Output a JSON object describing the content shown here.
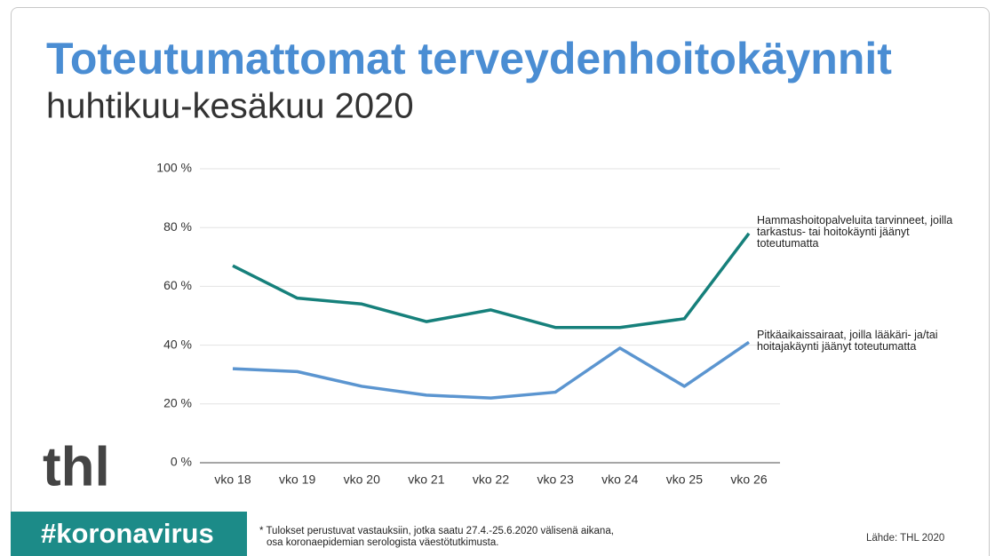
{
  "chart_data": {
    "type": "line",
    "title": "Toteutumattomat terveydenhoitokäynnit",
    "subtitle": "huhtikuu-kesäkuu 2020",
    "categories": [
      "vko 18",
      "vko 19",
      "vko 20",
      "vko 21",
      "vko 22",
      "vko 23",
      "vko 24",
      "vko 25",
      "vko 26"
    ],
    "series": [
      {
        "name": "Hammashoitopalveluita tarvinneet, joilla tarkastus- tai hoitokäynti jäänyt toteutumatta",
        "color": "#16807b",
        "values": [
          67,
          56,
          54,
          48,
          52,
          46,
          46,
          49,
          78
        ]
      },
      {
        "name": "Pitkäaikaissairaat, joilla lääkäri- ja/tai hoitajakäynti jäänyt toteutumatta",
        "color": "#5b95d0",
        "values": [
          32,
          31,
          26,
          23,
          22,
          24,
          39,
          26,
          41
        ]
      }
    ],
    "ylim": [
      0,
      100
    ],
    "yticks": [
      {
        "value": 0,
        "label": "0 %"
      },
      {
        "value": 20,
        "label": "20 %"
      },
      {
        "value": 40,
        "label": "40 %"
      },
      {
        "value": 60,
        "label": "60 %"
      },
      {
        "value": 80,
        "label": "80 %"
      },
      {
        "value": 100,
        "label": "100 %"
      }
    ],
    "grid": true
  },
  "logo": "thl",
  "hashtag": "#koronavirus",
  "footnote": [
    "* Tulokset perustuvat vastauksiin, jotka saatu 27.4.-25.6.2020 välisenä aikana,",
    "osa koronaepidemian serologista väestötutkimusta."
  ],
  "source": "Lähde: THL 2020"
}
